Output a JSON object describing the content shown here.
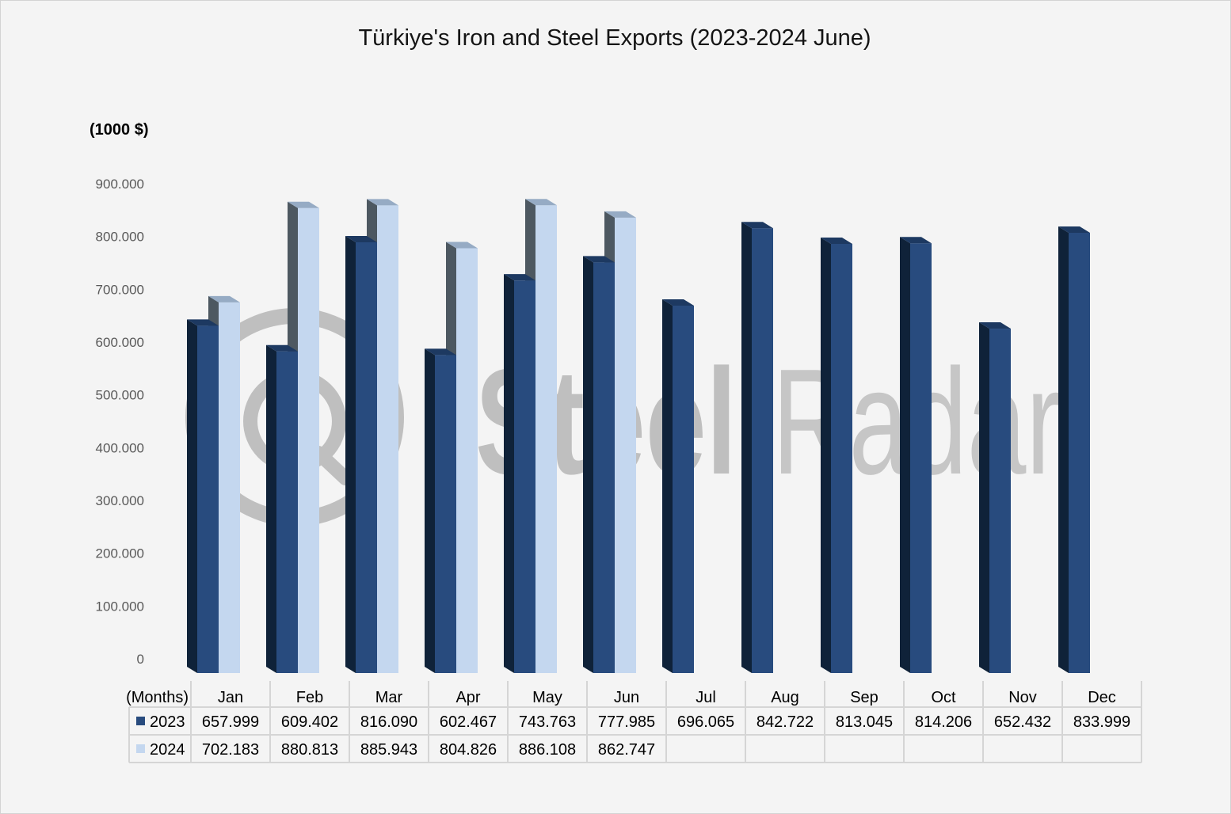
{
  "chart_data": {
    "type": "bar",
    "style": "3d-clustered-column",
    "title": "Türkiye's Iron and Steel Exports (2023-2024 June)",
    "ylabel": "(1000 $)",
    "xlabel": "(Months)",
    "categories": [
      "Jan",
      "Feb",
      "Mar",
      "Apr",
      "May",
      "Jun",
      "Jul",
      "Aug",
      "Sep",
      "Oct",
      "Nov",
      "Dec"
    ],
    "series": [
      {
        "name": "2023",
        "values": [
          657999,
          609402,
          816090,
          602467,
          743763,
          777985,
          696065,
          842722,
          813045,
          814206,
          652432,
          833999
        ],
        "colors": {
          "front": "#284b7e",
          "side": "#0f2239",
          "top": "#1d3961"
        }
      },
      {
        "name": "2024",
        "values": [
          702183,
          880813,
          885943,
          804826,
          886108,
          862747,
          null,
          null,
          null,
          null,
          null,
          null
        ],
        "colors": {
          "front": "#c4d7ef",
          "side": "#4d5861",
          "top": "#96abc4"
        }
      }
    ],
    "ylim": [
      0,
      900000
    ],
    "yticks": [
      0,
      100000,
      200000,
      300000,
      400000,
      500000,
      600000,
      700000,
      800000,
      900000
    ],
    "grid": false,
    "legend": "in data table",
    "data_table": true
  },
  "watermark": {
    "bold_part": "Steel",
    "light_part": "Radar"
  }
}
